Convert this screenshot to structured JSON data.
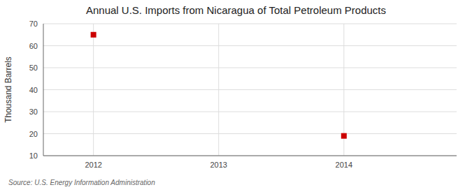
{
  "chart_data": {
    "type": "scatter",
    "title": "Annual U.S. Imports from Nicaragua of Total Petroleum Products",
    "y_label": "Thousand Barrels",
    "source": "Source: U.S. Energy Information Administration",
    "x": [
      2012,
      2014
    ],
    "values": [
      65,
      19
    ],
    "color": "#CC0000",
    "marker": "square",
    "xlim": [
      2011.6,
      2014.9
    ],
    "ylim": [
      10,
      70
    ],
    "xticks": [
      2012,
      2013,
      2014
    ],
    "yticks": [
      10,
      20,
      30,
      40,
      50,
      60,
      70
    ],
    "grid": true
  }
}
